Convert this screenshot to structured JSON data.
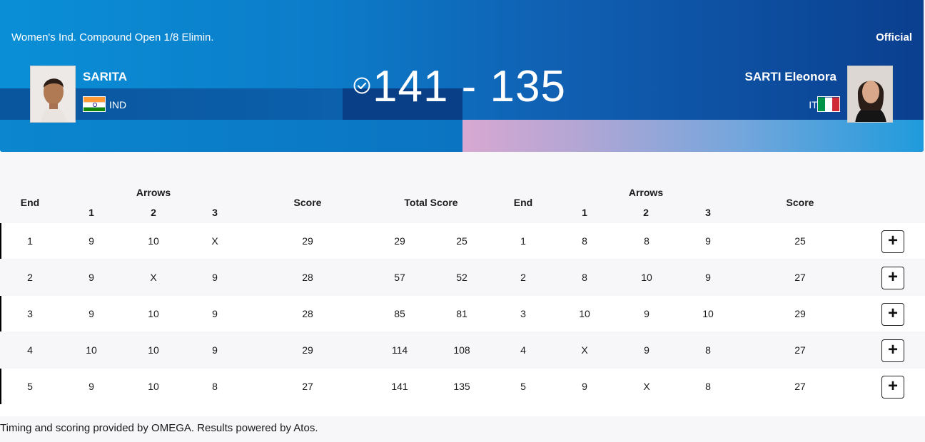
{
  "header": {
    "event_title": "Women's Ind. Compound Open 1/8 Elimin.",
    "status": "Official",
    "score": "141 - 135",
    "left": {
      "name": "SARITA",
      "country": "IND"
    },
    "right": {
      "name": "SARTI Eleonora",
      "country": "ITA"
    },
    "colors": {
      "accent": "#0c7cc9",
      "dark": "#0b3f8f"
    }
  },
  "table": {
    "headers": {
      "end": "End",
      "arrows": "Arrows",
      "a1": "1",
      "a2": "2",
      "a3": "3",
      "score": "Score",
      "total": "Total Score"
    },
    "rows": [
      {
        "end": "1",
        "l": [
          "9",
          "10",
          "X"
        ],
        "lscore": "29",
        "ltotal": "29",
        "rtotal": "25",
        "rend": "1",
        "r": [
          "8",
          "8",
          "9"
        ],
        "rscore": "25"
      },
      {
        "end": "2",
        "l": [
          "9",
          "X",
          "9"
        ],
        "lscore": "28",
        "ltotal": "57",
        "rtotal": "52",
        "rend": "2",
        "r": [
          "8",
          "10",
          "9"
        ],
        "rscore": "27"
      },
      {
        "end": "3",
        "l": [
          "9",
          "10",
          "9"
        ],
        "lscore": "28",
        "ltotal": "85",
        "rtotal": "81",
        "rend": "3",
        "r": [
          "10",
          "9",
          "10"
        ],
        "rscore": "29"
      },
      {
        "end": "4",
        "l": [
          "10",
          "10",
          "9"
        ],
        "lscore": "29",
        "ltotal": "114",
        "rtotal": "108",
        "rend": "4",
        "r": [
          "X",
          "9",
          "8"
        ],
        "rscore": "27"
      },
      {
        "end": "5",
        "l": [
          "9",
          "10",
          "8"
        ],
        "lscore": "27",
        "ltotal": "141",
        "rtotal": "135",
        "rend": "5",
        "r": [
          "9",
          "X",
          "8"
        ],
        "rscore": "27"
      }
    ],
    "expand_label": "+"
  },
  "footer": {
    "text": "Timing and scoring provided by OMEGA. Results powered by Atos."
  }
}
